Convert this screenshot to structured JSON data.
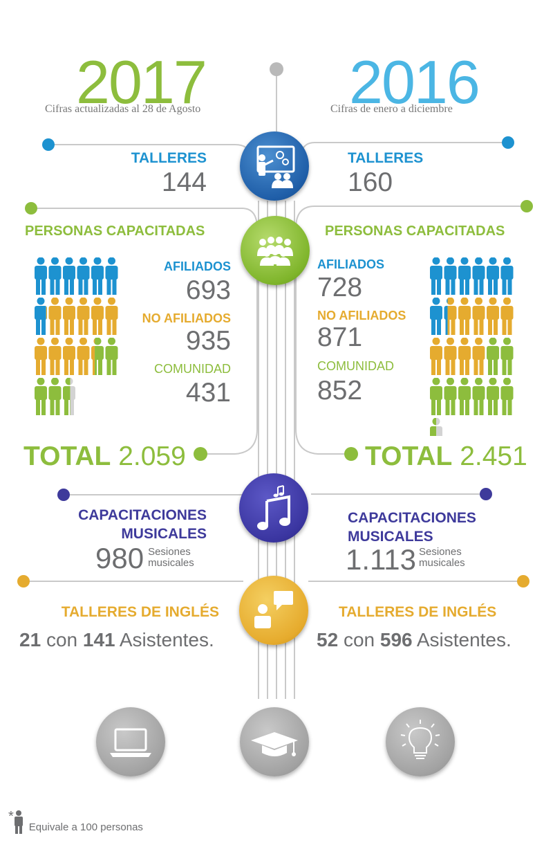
{
  "y2017": {
    "year": "2017",
    "subtitle": "Cifras actualizadas al 28 de Agosto",
    "talleres_label": "TALLERES",
    "talleres_value": "144",
    "personas_label": "PERSONAS CAPACITADAS",
    "afiliados_label": "AFILIADOS",
    "afiliados_value": "693",
    "no_afiliados_label": "NO AFILIADOS",
    "no_afiliados_value": "935",
    "comunidad_label": "COMUNIDAD",
    "comunidad_value": "431",
    "total_label": "TOTAL",
    "total_value": "2.059",
    "musicales_line1": "CAPACITACIONES",
    "musicales_line2": "MUSICALES",
    "musicales_value": "980",
    "sesiones_line1": "Sesiones",
    "sesiones_line2": "musicales",
    "ingles_label": "TALLERES DE INGLÉS",
    "ingles_count": "21",
    "ingles_con": "con",
    "ingles_asistentes": "141",
    "ingles_asistentes_label": "Asistentes."
  },
  "y2016": {
    "year": "2016",
    "subtitle": "Cifras de enero a diciembre",
    "talleres_label": "TALLERES",
    "talleres_value": "160",
    "personas_label": "PERSONAS CAPACITADAS",
    "afiliados_label": "AFILIADOS",
    "afiliados_value": "728",
    "no_afiliados_label": "NO AFILIADOS",
    "no_afiliados_value": "871",
    "comunidad_label": "COMUNIDAD",
    "comunidad_value": "852",
    "total_label": "TOTAL",
    "total_value": "2.451",
    "musicales_line1": "CAPACITACIONES",
    "musicales_line2": "MUSICALES",
    "musicales_value": "1.113",
    "sesiones_line1": "Sesiones",
    "sesiones_line2": "musicales",
    "ingles_label": "TALLERES DE INGLÉS",
    "ingles_count": "52",
    "ingles_con": "con",
    "ingles_asistentes": "596",
    "ingles_asistentes_label": "Asistentes."
  },
  "pictogram": {
    "unit_people": 100,
    "y2017": {
      "afiliados": 6.93,
      "no_afiliados": 9.35,
      "comunidad": 4.31
    },
    "y2016": {
      "afiliados": 7.28,
      "no_afiliados": 8.71,
      "comunidad": 8.52
    }
  },
  "footnote": {
    "asterisk": "*",
    "text": "Equivale a 100 personas"
  },
  "icons": {
    "talleres": "presentation-icon",
    "personas": "group-people-icon",
    "musicales": "music-notes-icon",
    "ingles": "chat-person-icon",
    "bottom": [
      "laptop-icon",
      "graduation-cap-icon",
      "lightbulb-icon"
    ]
  },
  "colors": {
    "year2017": "#8dbd3d",
    "year2016": "#4bb6e4",
    "blue": "#1d92d0",
    "green": "#8dbd3d",
    "orange": "#e5ab2f",
    "purple": "#3e3a9b",
    "gray_text": "#6d6e70",
    "line": "#c8c8c8"
  }
}
